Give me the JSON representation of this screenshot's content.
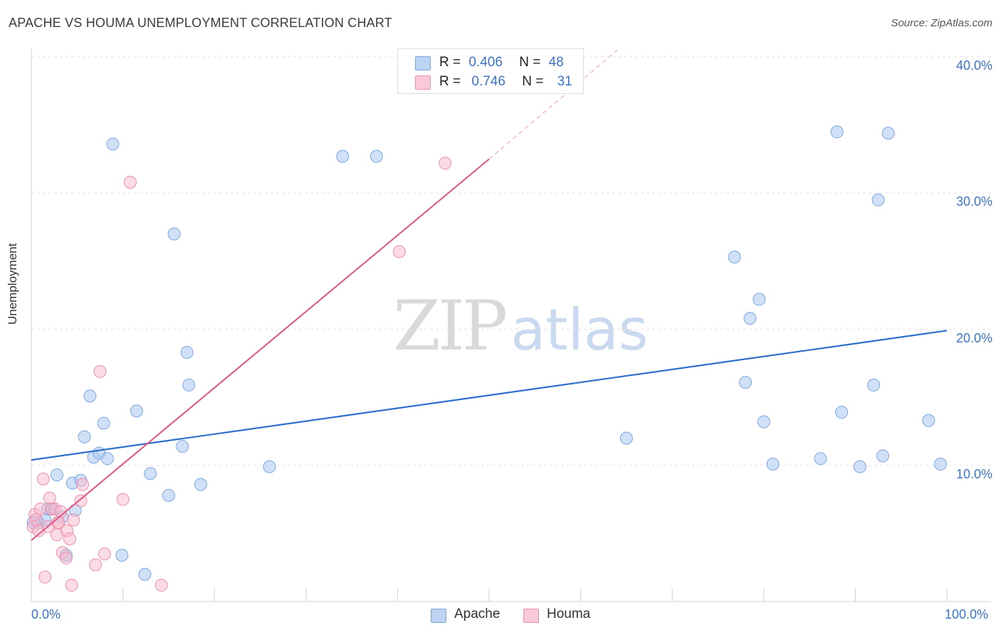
{
  "header": {
    "title": "APACHE VS HOUMA UNEMPLOYMENT CORRELATION CHART",
    "source": "Source: ZipAtlas.com"
  },
  "watermark": {
    "zip": "ZIP",
    "atlas": "atlas"
  },
  "legend": {
    "apache": {
      "r_label": "R =",
      "r_value": "0.406",
      "n_label": "N =",
      "n_value": "48"
    },
    "houma": {
      "r_label": "R =",
      "r_value": "0.746",
      "n_label": "N =",
      "n_value": "31"
    }
  },
  "bottom_legend": {
    "apache": "Apache",
    "houma": "Houma"
  },
  "colors": {
    "apache_fill": "#a9c8f0",
    "apache_stroke": "#7aa6e0",
    "apache_line": "#2f6fce",
    "houma_fill": "#f7b8cb",
    "houma_stroke": "#ec8fab",
    "houma_line": "#e0608a",
    "tick_label": "#3b73c4"
  },
  "chart_data": {
    "type": "scatter",
    "title": "APACHE VS HOUMA UNEMPLOYMENT CORRELATION CHART",
    "xlabel": "",
    "ylabel": "Unemployment",
    "xlim": [
      0,
      100
    ],
    "ylim": [
      0,
      40
    ],
    "x_tick_labels": {
      "min": "0.0%",
      "max": "100.0%"
    },
    "y_ticks": [
      {
        "value": 10,
        "label": "10.0%"
      },
      {
        "value": 20,
        "label": "20.0%"
      },
      {
        "value": 30,
        "label": "30.0%"
      },
      {
        "value": 40,
        "label": "40.0%"
      }
    ],
    "series": [
      {
        "name": "Apache",
        "r": 0.406,
        "n": 48,
        "trend": {
          "x0": 0,
          "y0": 10.4,
          "x1": 100,
          "y1": 19.9
        },
        "points": [
          [
            0.2,
            5.8
          ],
          [
            0.8,
            5.8
          ],
          [
            1.5,
            6.0
          ],
          [
            1.8,
            6.8
          ],
          [
            2.3,
            6.8
          ],
          [
            2.8,
            9.3
          ],
          [
            3.4,
            6.2
          ],
          [
            3.8,
            3.4
          ],
          [
            4.5,
            8.7
          ],
          [
            4.8,
            6.7
          ],
          [
            5.4,
            8.9
          ],
          [
            5.8,
            12.1
          ],
          [
            6.4,
            15.1
          ],
          [
            6.8,
            10.6
          ],
          [
            7.4,
            10.9
          ],
          [
            7.9,
            13.1
          ],
          [
            8.3,
            10.5
          ],
          [
            8.9,
            33.6
          ],
          [
            9.9,
            3.4
          ],
          [
            11.5,
            14.0
          ],
          [
            12.4,
            2.0
          ],
          [
            13.0,
            9.4
          ],
          [
            15.0,
            7.8
          ],
          [
            15.6,
            27.0
          ],
          [
            16.5,
            11.4
          ],
          [
            17.0,
            18.3
          ],
          [
            17.2,
            15.9
          ],
          [
            18.5,
            8.6
          ],
          [
            26.0,
            9.9
          ],
          [
            34.0,
            32.7
          ],
          [
            37.7,
            32.7
          ],
          [
            65.0,
            12.0
          ],
          [
            76.8,
            25.3
          ],
          [
            78.5,
            20.8
          ],
          [
            79.5,
            22.2
          ],
          [
            78.0,
            16.1
          ],
          [
            80.0,
            13.2
          ],
          [
            81.0,
            10.1
          ],
          [
            86.2,
            10.5
          ],
          [
            88.0,
            34.5
          ],
          [
            88.5,
            13.9
          ],
          [
            90.5,
            9.9
          ],
          [
            92.0,
            15.9
          ],
          [
            92.5,
            29.5
          ],
          [
            93.0,
            10.7
          ],
          [
            93.6,
            34.4
          ],
          [
            98.0,
            13.3
          ],
          [
            99.3,
            10.1
          ]
        ]
      },
      {
        "name": "Houma",
        "r": 0.746,
        "n": 31,
        "trend": {
          "x0": 0,
          "y0": 4.5,
          "x1": 50,
          "y1": 32.5,
          "dash_to_x": 64,
          "dash_to_y": 40.5
        },
        "points": [
          [
            0.2,
            5.5
          ],
          [
            0.4,
            6.4
          ],
          [
            0.5,
            6.0
          ],
          [
            0.8,
            5.2
          ],
          [
            1.0,
            6.8
          ],
          [
            1.3,
            9.0
          ],
          [
            1.5,
            1.8
          ],
          [
            1.8,
            5.5
          ],
          [
            2.0,
            7.6
          ],
          [
            2.2,
            6.8
          ],
          [
            2.6,
            6.8
          ],
          [
            2.8,
            4.9
          ],
          [
            2.9,
            5.8
          ],
          [
            3.2,
            6.6
          ],
          [
            3.4,
            3.6
          ],
          [
            3.8,
            3.2
          ],
          [
            3.9,
            5.2
          ],
          [
            4.2,
            4.6
          ],
          [
            4.4,
            1.2
          ],
          [
            4.6,
            6.0
          ],
          [
            5.4,
            7.4
          ],
          [
            5.6,
            8.6
          ],
          [
            7.0,
            2.7
          ],
          [
            7.5,
            16.9
          ],
          [
            8.0,
            3.5
          ],
          [
            10.0,
            7.5
          ],
          [
            10.8,
            30.8
          ],
          [
            14.2,
            1.2
          ],
          [
            40.2,
            25.7
          ],
          [
            45.2,
            32.2
          ],
          [
            3.0,
            5.8
          ]
        ]
      }
    ]
  }
}
